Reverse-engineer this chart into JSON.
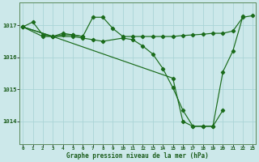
{
  "bg_color": "#cce8ea",
  "grid_color": "#aad4d6",
  "line_color": "#1a6b1a",
  "marker_color": "#1a6b1a",
  "xlabel": "Graphe pression niveau de la mer (hPa)",
  "xlabel_color": "#1a5c1a",
  "ylabel_ticks": [
    1014,
    1015,
    1016,
    1017
  ],
  "xticks": [
    0,
    1,
    2,
    3,
    4,
    5,
    6,
    7,
    8,
    9,
    10,
    11,
    12,
    13,
    14,
    15,
    16,
    17,
    18,
    19,
    20,
    21,
    22,
    23
  ],
  "xlim": [
    -0.3,
    23.3
  ],
  "ylim": [
    1013.3,
    1017.7
  ],
  "series": [
    {
      "x": [
        0,
        1,
        2,
        3,
        4,
        5,
        6,
        7,
        8,
        9,
        10,
        11,
        12,
        13,
        14,
        15,
        16,
        17,
        18,
        19,
        20,
        21,
        22,
        23
      ],
      "y": [
        1016.95,
        1017.1,
        1016.7,
        1016.65,
        1016.75,
        1016.7,
        1016.65,
        1017.25,
        1017.25,
        1016.9,
        1016.65,
        1016.65,
        1016.65,
        1016.65,
        1016.65,
        1016.65,
        1016.68,
        1016.7,
        1016.72,
        1016.75,
        1016.75,
        1016.82,
        1017.25,
        1017.3
      ]
    },
    {
      "x": [
        0,
        2,
        3,
        4,
        5,
        6
      ],
      "y": [
        1016.95,
        1016.65,
        1016.65,
        1016.7,
        1016.7,
        1016.65
      ]
    },
    {
      "x": [
        0,
        3,
        5,
        6,
        7,
        8,
        10,
        11,
        12,
        13,
        14,
        15,
        16,
        17,
        18,
        19,
        20
      ],
      "y": [
        1016.95,
        1016.65,
        1016.65,
        1016.6,
        1016.55,
        1016.5,
        1016.6,
        1016.55,
        1016.35,
        1016.1,
        1015.65,
        1015.05,
        1014.35,
        1013.85,
        1013.85,
        1013.85,
        1014.35
      ]
    },
    {
      "x": [
        0,
        3,
        15,
        16,
        17,
        18,
        19,
        20,
        21,
        22
      ],
      "y": [
        1016.95,
        1016.65,
        1015.35,
        1014.0,
        1013.85,
        1013.85,
        1013.85,
        1015.55,
        1016.2,
        1017.28
      ]
    }
  ]
}
